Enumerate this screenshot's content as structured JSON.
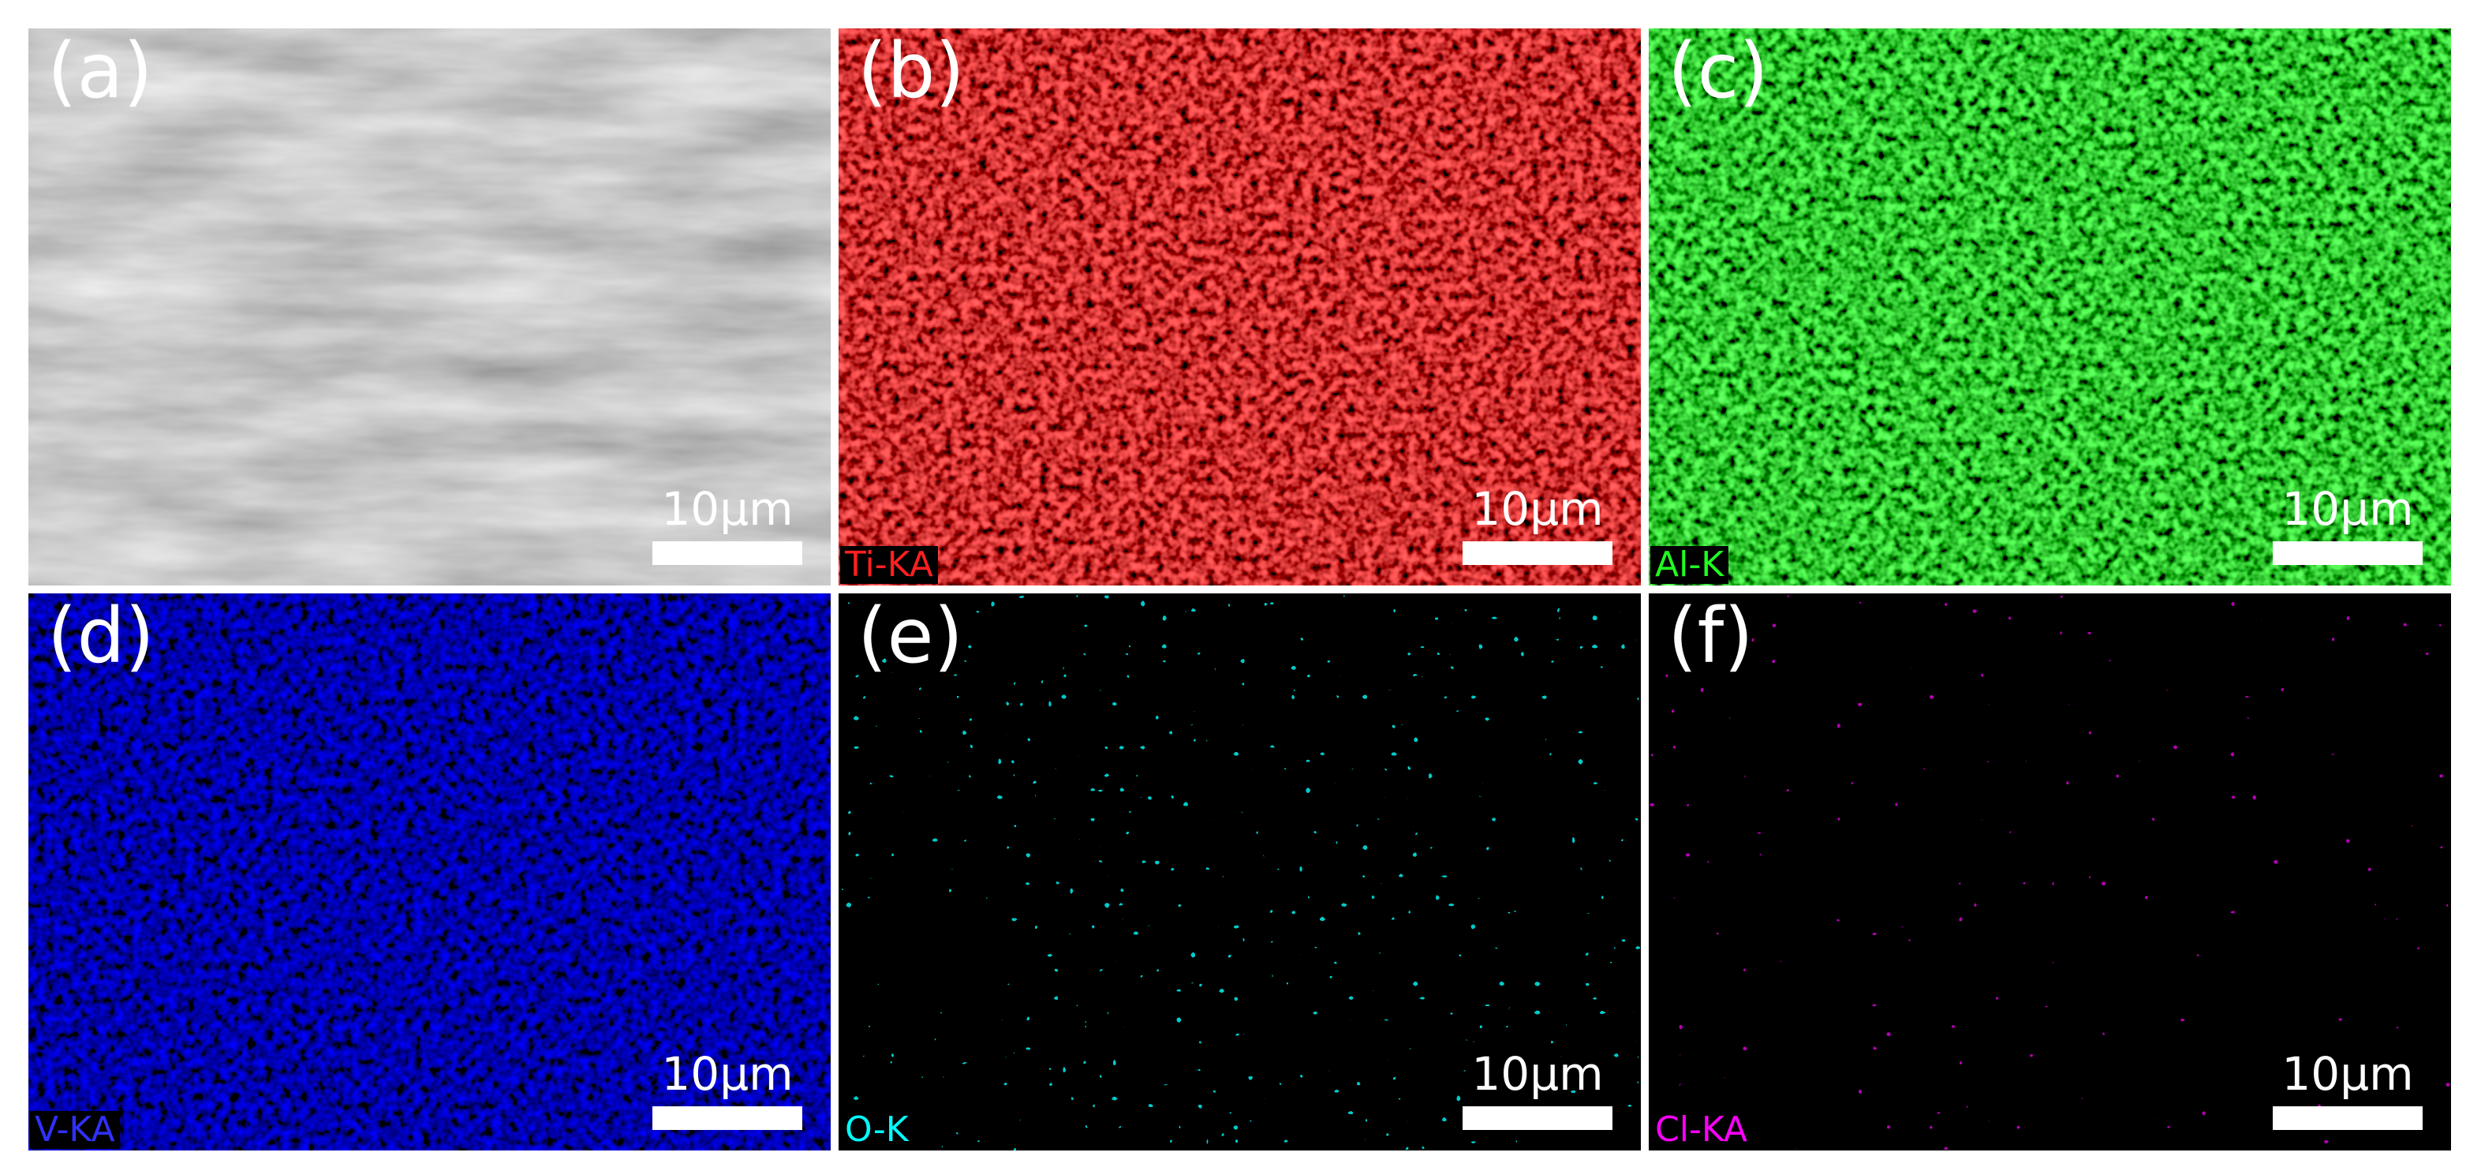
{
  "panels": [
    {
      "label": "(a)",
      "scale_bar": "10μm"
    },
    {
      "label": "(b)",
      "scale_bar": "10μm",
      "element": "Ti-KA"
    },
    {
      "label": "(c)",
      "scale_bar": "10μm",
      "element": "Al-K"
    },
    {
      "label": "(d)",
      "scale_bar": "10μm",
      "element": "V-KA"
    },
    {
      "label": "(e)",
      "scale_bar": "10μm",
      "element": "O-K"
    },
    {
      "label": "(f)",
      "scale_bar": "10μm",
      "element": "Cl-KA"
    }
  ]
}
